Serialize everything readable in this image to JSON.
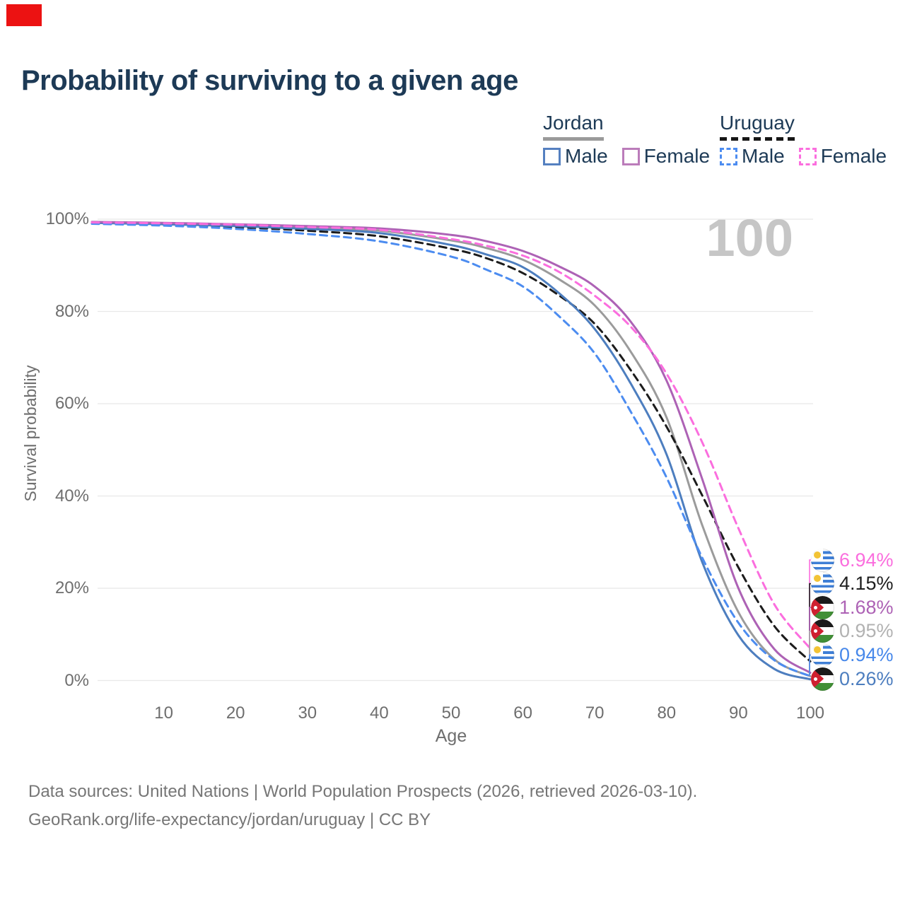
{
  "marker_color": "#ec1212",
  "title": "Probability of surviving to a given age",
  "watermark": "100",
  "legend": {
    "groups": [
      {
        "label": "Jordan",
        "line_style": "solid",
        "underline_color": "#9a9a9a",
        "items": [
          {
            "label": "Male",
            "color": "#5580c0"
          },
          {
            "label": "Female",
            "color": "#bb7cba"
          }
        ]
      },
      {
        "label": "Uruguay",
        "line_style": "dashed",
        "underline_color": "#161616",
        "items": [
          {
            "label": "Male",
            "color": "#4c8cf0"
          },
          {
            "label": "Female",
            "color": "#fb6ede"
          }
        ]
      }
    ]
  },
  "chart_data": {
    "type": "line",
    "title": "Probability of surviving to a given age",
    "xlabel": "Age",
    "ylabel": "Survival probability",
    "xlim": [
      0,
      100
    ],
    "ylim": [
      0,
      100
    ],
    "grid": true,
    "legend_position": "top-right",
    "x_ticks": [
      10,
      20,
      30,
      40,
      50,
      60,
      70,
      80,
      90,
      100
    ],
    "y_ticks": [
      {
        "value": 100,
        "label": "100%"
      },
      {
        "value": 80,
        "label": "80%"
      },
      {
        "value": 60,
        "label": "60%"
      },
      {
        "value": 40,
        "label": "40%"
      },
      {
        "value": 20,
        "label": "20%"
      },
      {
        "value": 0,
        "label": "0%"
      }
    ],
    "ages": [
      0,
      10,
      20,
      30,
      40,
      50,
      55,
      60,
      65,
      70,
      75,
      80,
      85,
      90,
      95,
      100
    ],
    "series": [
      {
        "key": "jordan_both",
        "name": "Jordan (both sexes)",
        "color": "#9b9b9b",
        "dash": "solid",
        "values": [
          99.3,
          99.0,
          98.7,
          98.2,
          97.5,
          95.4,
          93.7,
          91.2,
          87.0,
          81.3,
          71.3,
          57.0,
          33.5,
          14.8,
          4.6,
          0.95
        ]
      },
      {
        "key": "uruguay_both",
        "name": "Uruguay (both sexes)",
        "color": "#1c1c1c",
        "dash": "dashed",
        "values": [
          99.1,
          98.8,
          98.3,
          97.5,
          96.3,
          93.6,
          91.5,
          88.3,
          83.5,
          77.3,
          67.3,
          55.0,
          40.0,
          24.5,
          11.8,
          4.15
        ]
      },
      {
        "key": "jordan_male",
        "name": "Jordan Male",
        "color": "#4d7ebf",
        "dash": "solid",
        "values": [
          99.2,
          98.9,
          98.5,
          97.9,
          97.0,
          94.4,
          92.3,
          89.6,
          84.0,
          76.2,
          64.4,
          49.0,
          25.5,
          9.8,
          2.5,
          0.26
        ]
      },
      {
        "key": "jordan_female",
        "name": "Jordan Female",
        "color": "#ad62b5",
        "dash": "solid",
        "values": [
          99.4,
          99.2,
          98.9,
          98.5,
          98.0,
          96.6,
          95.2,
          93.1,
          89.8,
          85.4,
          77.8,
          65.0,
          43.5,
          20.0,
          6.8,
          1.68
        ]
      },
      {
        "key": "uruguay_male",
        "name": "Uruguay Male",
        "color": "#4c8cf0",
        "dash": "dashed",
        "values": [
          99.0,
          98.6,
          97.9,
          96.8,
          95.2,
          91.9,
          89.0,
          85.4,
          79.0,
          70.9,
          58.3,
          44.0,
          26.5,
          12.5,
          4.4,
          0.94
        ]
      },
      {
        "key": "uruguay_female",
        "name": "Uruguay Female",
        "color": "#fb6ede",
        "dash": "dashed",
        "values": [
          99.3,
          99.1,
          98.8,
          98.3,
          97.7,
          95.7,
          94.2,
          92.1,
          88.6,
          83.4,
          76.7,
          66.5,
          51.5,
          33.0,
          16.5,
          6.94
        ]
      }
    ],
    "end_labels": [
      {
        "series": "uruguay_female",
        "text": "6.94%",
        "color": "#fb6ede",
        "flag": "uy"
      },
      {
        "series": "uruguay_both",
        "text": "4.15%",
        "color": "#1f1f1f",
        "flag": "uy"
      },
      {
        "series": "jordan_female",
        "text": "1.68%",
        "color": "#ad62b5",
        "flag": "jo"
      },
      {
        "series": "jordan_both",
        "text": "0.95%",
        "color": "#b2b2b2",
        "flag": "jo"
      },
      {
        "series": "uruguay_male",
        "text": "0.94%",
        "color": "#4788ea",
        "flag": "uy"
      },
      {
        "series": "jordan_male",
        "text": "0.26%",
        "color": "#4d7ebf",
        "flag": "jo"
      }
    ]
  },
  "footer": {
    "line1": "Data sources: United Nations | World Population Prospects (2026, retrieved 2026-03-10).",
    "line2": "GeoRank.org/life-expectancy/jordan/uruguay | CC BY"
  }
}
